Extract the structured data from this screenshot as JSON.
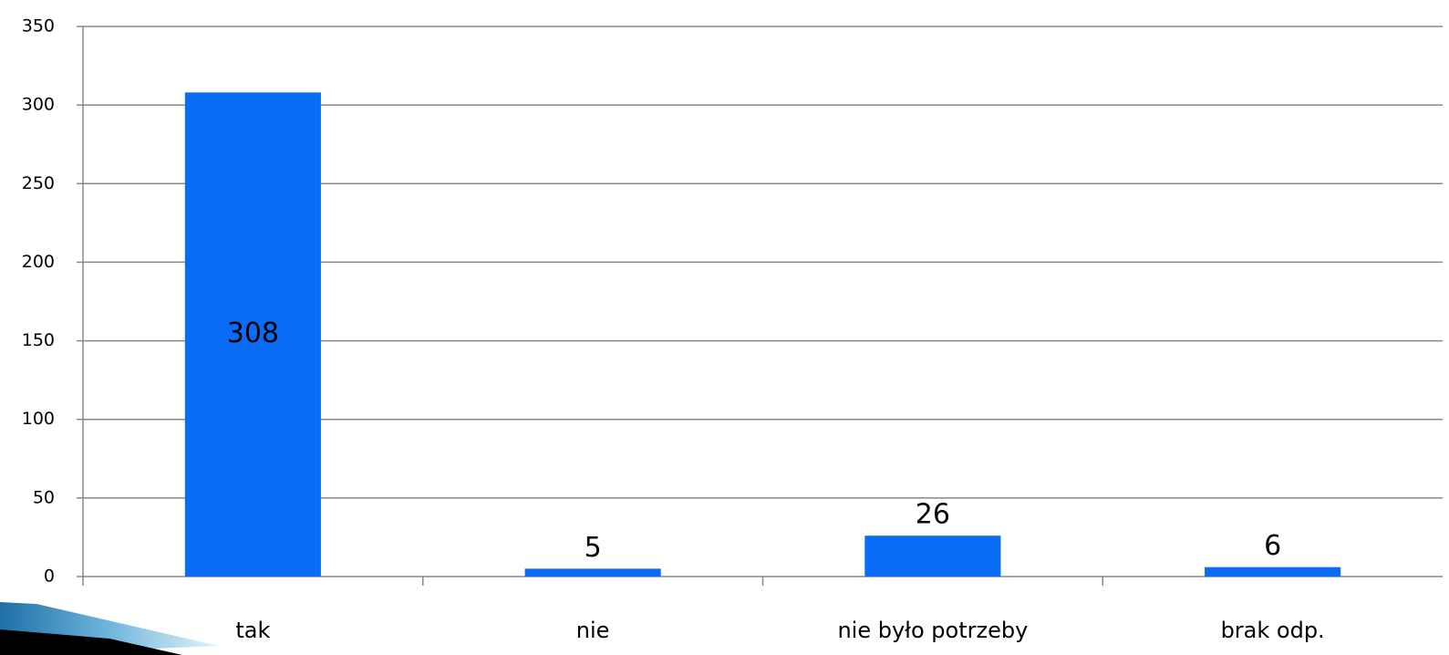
{
  "chart_data": {
    "type": "bar",
    "categories": [
      "tak",
      "nie",
      "nie było potrzeby",
      "brak odp."
    ],
    "values": [
      308,
      5,
      26,
      6
    ],
    "color": "#0a6cf5",
    "ylim": [
      0,
      350
    ],
    "yticks": [
      0,
      50,
      100,
      150,
      200,
      250,
      300,
      350
    ],
    "grid": true
  }
}
